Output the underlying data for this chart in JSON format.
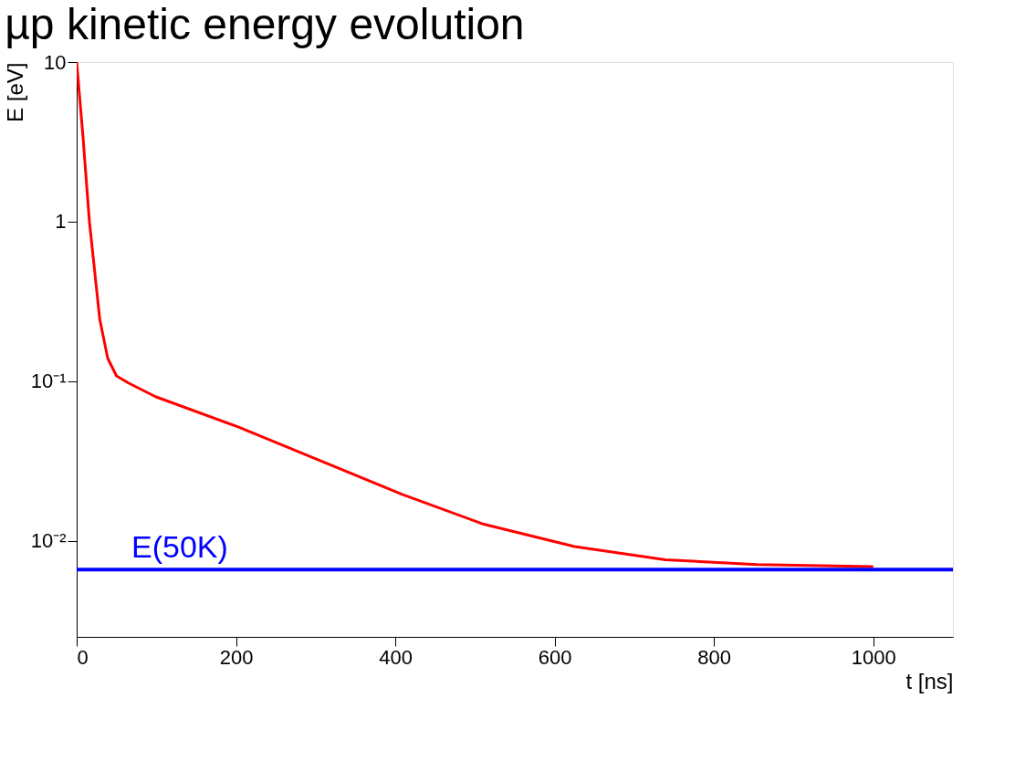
{
  "chart_data": {
    "type": "line",
    "title": "µp kinetic energy evolution",
    "xlabel": "t [ns]",
    "ylabel": "E [eV]",
    "x": [
      0,
      8,
      16,
      29,
      39,
      50,
      65,
      99,
      202,
      305,
      408,
      511,
      625,
      739,
      854,
      1000
    ],
    "series": [
      {
        "color": "#ff0000",
        "values": [
          10,
          3.37,
          1,
          0.244,
          0.139,
          0.108,
          0.0975,
          0.08,
          0.0519,
          0.0319,
          0.0196,
          0.0127,
          0.0092,
          0.0076,
          0.0071,
          0.0069
        ]
      }
    ],
    "log": "y",
    "xlim": [
      0,
      1100
    ],
    "ylim": [
      0.0025,
      10
    ],
    "xticks": [
      0,
      200,
      400,
      600,
      800,
      1000
    ],
    "yticks": [
      {
        "value": 0.01,
        "label": "10⁻²"
      },
      {
        "value": 0.1,
        "label": "10⁻¹"
      },
      1,
      10
    ],
    "ref_lines": [
      {
        "axis": "y",
        "value": 0.0066,
        "label": "E(50K)",
        "color": "#0000ff"
      }
    ],
    "grid": false,
    "marker": "none",
    "line_style": "solid"
  }
}
